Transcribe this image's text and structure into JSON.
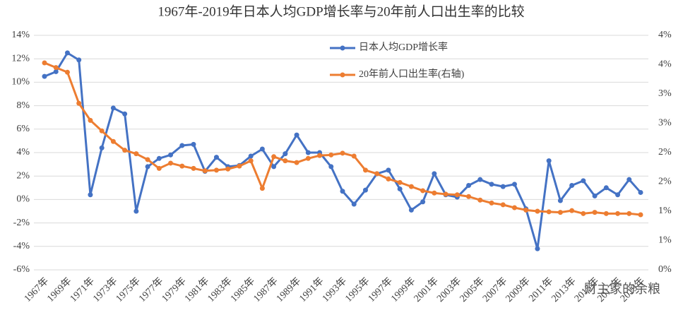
{
  "chart_data": {
    "type": "line",
    "title": "1967年-2019年日本人均GDP增长率与20年前人口出生率的比较",
    "categories": [
      "1967年",
      null,
      "1969年",
      null,
      "1971年",
      null,
      "1973年",
      null,
      "1975年",
      null,
      "1977年",
      null,
      "1979年",
      null,
      "1981年",
      null,
      "1983年",
      null,
      "1985年",
      null,
      "1987年",
      null,
      "1989年",
      null,
      "1991年",
      null,
      "1993年",
      null,
      "1995年",
      null,
      "1997年",
      null,
      "1999年",
      null,
      "2001年",
      null,
      "2003年",
      null,
      "2005年",
      null,
      "2007年",
      null,
      "2009年",
      null,
      "2011年",
      null,
      "2013年",
      null,
      "2015年",
      null,
      "2017年",
      null,
      "2019年"
    ],
    "series": [
      {
        "name": "日本人均GDP增长率",
        "color": "#4472c4",
        "values": [
          10.5,
          10.9,
          12.5,
          11.9,
          0.4,
          4.4,
          7.8,
          7.3,
          -1.0,
          2.8,
          3.5,
          3.8,
          4.6,
          4.7,
          2.4,
          3.6,
          2.8,
          2.9,
          3.7,
          4.3,
          2.8,
          3.9,
          5.5,
          4.0,
          4.0,
          2.8,
          0.7,
          -0.4,
          0.8,
          2.2,
          2.5,
          0.9,
          -0.9,
          -0.2,
          2.2,
          0.4,
          0.2,
          1.2,
          1.7,
          1.3,
          1.1,
          1.3,
          -0.8,
          -4.2,
          3.3,
          -0.1,
          1.2,
          1.6,
          0.3,
          1.0,
          0.4,
          1.7,
          0.6
        ]
      },
      {
        "name": "20年前人口出生率(右轴)",
        "color": "#ed7d31",
        "axis": "y2",
        "values": [
          3.53,
          3.45,
          3.37,
          2.84,
          2.55,
          2.37,
          2.19,
          2.04,
          1.98,
          1.88,
          1.73,
          1.82,
          1.77,
          1.73,
          1.69,
          1.7,
          1.72,
          1.77,
          1.86,
          1.39,
          1.93,
          1.86,
          1.83,
          1.9,
          1.95,
          1.96,
          1.99,
          1.94,
          1.7,
          1.64,
          1.55,
          1.49,
          1.42,
          1.35,
          1.31,
          1.29,
          1.28,
          1.25,
          1.19,
          1.14,
          1.11,
          1.06,
          1.02,
          1.0,
          0.99,
          0.98,
          1.01,
          0.96,
          0.98,
          0.96,
          0.96,
          0.96,
          0.94
        ]
      }
    ],
    "ylim": [
      -6,
      14
    ],
    "yticks": [
      {
        "value": -6,
        "label": "-6%"
      },
      {
        "value": -4,
        "label": "-4%"
      },
      {
        "value": -2,
        "label": "-2%"
      },
      {
        "value": 0,
        "label": "0%"
      },
      {
        "value": 2,
        "label": "2%"
      },
      {
        "value": 4,
        "label": "4%"
      },
      {
        "value": 6,
        "label": "6%"
      },
      {
        "value": 8,
        "label": "8%"
      },
      {
        "value": 10,
        "label": "10%"
      },
      {
        "value": 12,
        "label": "12%"
      },
      {
        "value": 14,
        "label": "14%"
      }
    ],
    "y2lim": [
      0,
      4
    ],
    "y2ticks": [
      {
        "value": 0,
        "label": "0%"
      },
      {
        "value": 0.5,
        "label": "1%"
      },
      {
        "value": 1,
        "label": "1%"
      },
      {
        "value": 1.5,
        "label": "2%"
      },
      {
        "value": 2,
        "label": "2%"
      },
      {
        "value": 2.5,
        "label": "3%"
      },
      {
        "value": 3,
        "label": "3%"
      },
      {
        "value": 3.5,
        "label": "4%"
      },
      {
        "value": 4,
        "label": "4%"
      }
    ],
    "grid": true,
    "legend": "top",
    "watermark": "财主家的余粮"
  }
}
